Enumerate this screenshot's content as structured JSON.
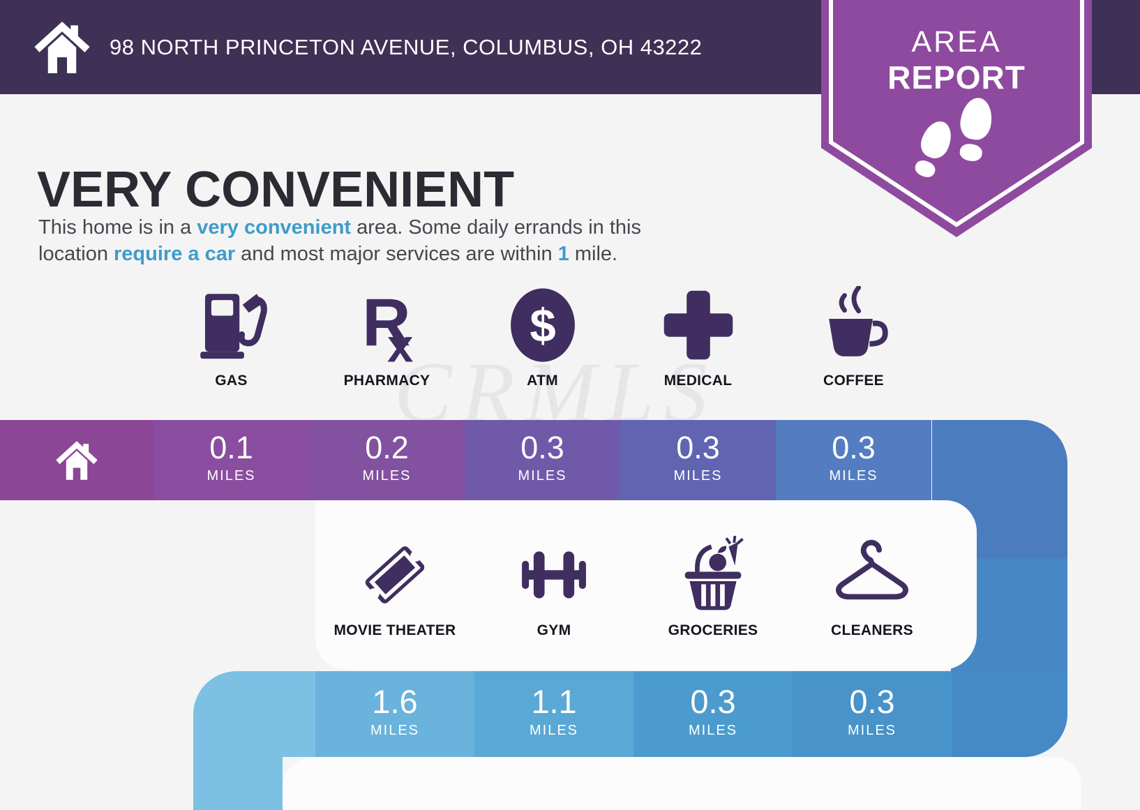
{
  "header": {
    "address": "98 NORTH PRINCETON AVENUE, COLUMBUS, OH 43222",
    "home_icon": "home-icon",
    "bg_color": "#3e3155"
  },
  "badge": {
    "line1": "AREA",
    "line2": "REPORT",
    "icon": "footprints-icon",
    "color": "#8e4a9e"
  },
  "headline": "VERY CONVENIENT",
  "summary": {
    "segments": [
      {
        "t": "This home is in a "
      },
      {
        "t": "very convenient",
        "hl": true
      },
      {
        "t": " area. Some daily errands in this"
      },
      {
        "br": true
      },
      {
        "t": "location "
      },
      {
        "t": "require a car",
        "hl": true
      },
      {
        "t": " and most major services are within "
      },
      {
        "t": "1",
        "hl": true
      },
      {
        "t": " mile."
      }
    ],
    "accent_color": "#3f9cca"
  },
  "watermark": {
    "text": "CRMLS"
  },
  "bars": {
    "unit": "MILES",
    "home_marker_icon": "home-icon",
    "home_segment_color": "#8c4696",
    "row1": {
      "items": [
        {
          "label": "GAS",
          "miles": "0.1",
          "color": "#8a4da0",
          "icon": "gas-pump-icon"
        },
        {
          "label": "PHARMACY",
          "miles": "0.2",
          "color": "#82519f",
          "icon": "rx-icon"
        },
        {
          "label": "ATM",
          "miles": "0.3",
          "color": "#7059a9",
          "icon": "dollar-circle-icon"
        },
        {
          "label": "MEDICAL",
          "miles": "0.3",
          "color": "#6164b1",
          "icon": "medical-cross-icon"
        },
        {
          "label": "COFFEE",
          "miles": "0.3",
          "color": "#537cc1",
          "icon": "coffee-cup-icon"
        }
      ],
      "tail_color": "#4a7cbe"
    },
    "row2": {
      "items": [
        {
          "label": "MOVIE THEATER",
          "miles": "1.6",
          "color": "#69b3dc",
          "icon": "ticket-icon"
        },
        {
          "label": "GYM",
          "miles": "1.1",
          "color": "#5aa8d5",
          "icon": "dumbbell-icon"
        },
        {
          "label": "GROCERIES",
          "miles": "0.3",
          "color": "#4b9bce",
          "icon": "basket-icon"
        },
        {
          "label": "CLEANERS",
          "miles": "0.3",
          "color": "#4793ca",
          "icon": "hanger-icon"
        }
      ],
      "lead_color": "#7cc1e4",
      "tail_color": "#4589c6",
      "band_color": "#4687c5"
    }
  },
  "colors": {
    "background": "#f5f4f5",
    "panel": "#fcfcfd",
    "icon": "#3f2e5f",
    "label": "#17141d",
    "heading": "#2d2a33",
    "body_text": "#47464e"
  }
}
